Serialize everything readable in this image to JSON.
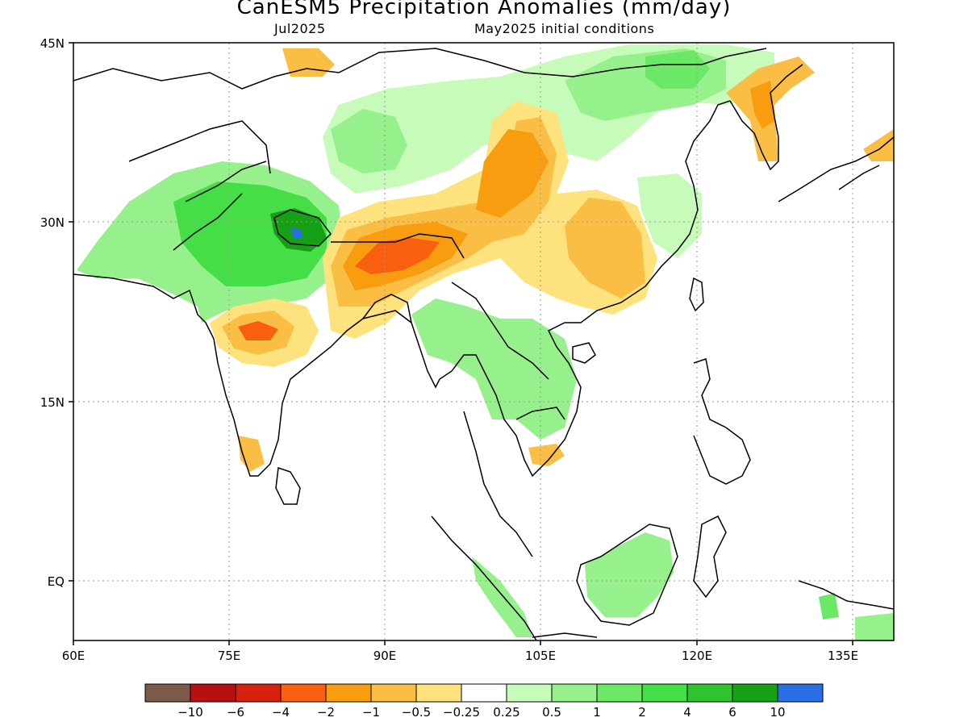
{
  "title": "CanESM5 Precipitation Anomalies (mm/day)",
  "subtitle_left": "Jul2025",
  "subtitle_right": "May2025 initial conditions",
  "axes": {
    "lat_labels": [
      "45N",
      "30N",
      "15N",
      "EQ"
    ],
    "lon_labels": [
      "60E",
      "75E",
      "90E",
      "105E",
      "120E",
      "135E"
    ]
  },
  "colorbar": {
    "colors": [
      "#7b5a4a",
      "#b80f0f",
      "#d8200f",
      "#f85f0f",
      "#f89d0f",
      "#fbbe45",
      "#fde27d",
      "#ffffff",
      "#c6fbba",
      "#96f08c",
      "#6ae866",
      "#46de46",
      "#2fc42f",
      "#16a016",
      "#2a6fe6"
    ],
    "labels": [
      "−10",
      "−6",
      "−4",
      "−2",
      "−1",
      "−0.5",
      "−0.25",
      "0.25",
      "0.5",
      "1",
      "2",
      "4",
      "6",
      "10"
    ]
  }
}
